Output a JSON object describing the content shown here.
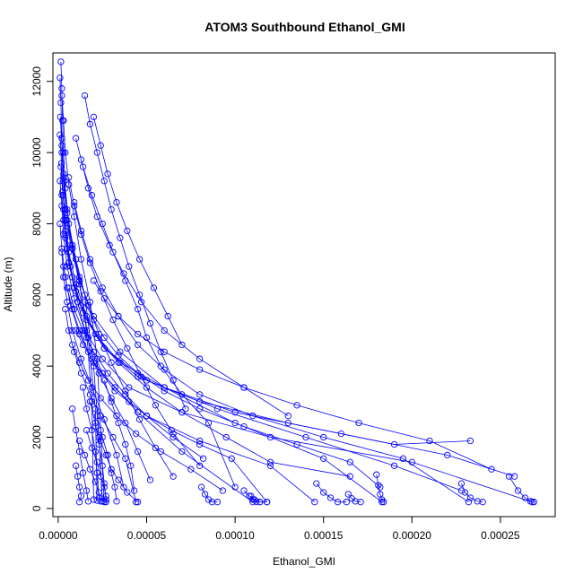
{
  "chart_data": {
    "type": "line",
    "title": "ATOM3 Southbound Ethanol_GMI",
    "xlabel": "Ethanol_GMI",
    "ylabel": "Altitude (m)",
    "xlim": [
      -3e-06,
      0.000281
    ],
    "ylim": [
      -230,
      12800
    ],
    "xticks": [
      0,
      5e-05,
      0.0001,
      0.00015,
      0.0002,
      0.00025
    ],
    "xtick_labels": [
      "0.00000",
      "0.00005",
      "0.00010",
      "0.00015",
      "0.00020",
      "0.00025"
    ],
    "yticks": [
      0,
      2000,
      4000,
      6000,
      8000,
      10000,
      12000
    ],
    "ytick_labels": [
      "0",
      "2000",
      "4000",
      "6000",
      "8000",
      "10000",
      "12000"
    ],
    "grid": false,
    "marker": "open-circle",
    "color": "#0000ff",
    "series": [
      {
        "x": [
          1.5e-06,
          2e-06,
          2.5e-06,
          3e-06,
          4e-06,
          6e-06,
          1e-05,
          1.5e-05,
          2e-05,
          2.3e-05,
          2.5e-05
        ],
        "y": [
          12550,
          11800,
          10900,
          10000,
          9000,
          8000,
          7000,
          6000,
          4000,
          2000,
          200
        ]
      },
      {
        "x": [
          1e-06,
          1.5e-06,
          2e-06,
          3e-06,
          5e-06,
          8e-06,
          1.2e-05,
          1.6e-05,
          1.9e-05,
          2e-05
        ],
        "y": [
          12100,
          11400,
          10400,
          9400,
          8400,
          7400,
          6400,
          5000,
          3000,
          250
        ]
      },
      {
        "x": [
          2e-06,
          3e-06,
          4e-06,
          6e-06,
          9e-06,
          1.3e-05,
          1.8e-05,
          2.2e-05,
          2.4e-05,
          2.6e-05
        ],
        "y": [
          11600,
          10900,
          10000,
          9100,
          8200,
          7000,
          5800,
          4200,
          2200,
          180
        ]
      },
      {
        "x": [
          1.2e-06,
          2e-06,
          3e-06,
          5e-06,
          8e-06,
          1.2e-05,
          1.7e-05,
          2.1e-05,
          2.2e-05
        ],
        "y": [
          11000,
          10200,
          9300,
          8300,
          7300,
          6300,
          4800,
          2800,
          220
        ]
      },
      {
        "x": [
          1e-06,
          1.8e-06,
          2.8e-06,
          4e-06,
          7e-06,
          1.1e-05,
          1.6e-05,
          2.5e-05,
          4.5e-05,
          7e-05,
          0.00011
        ],
        "y": [
          10500,
          9700,
          8800,
          7800,
          6800,
          5800,
          4800,
          3800,
          2700,
          1600,
          180
        ]
      },
      {
        "x": [
          2e-06,
          3e-06,
          4e-06,
          7e-06,
          1.2e-05,
          2e-05,
          3.5e-05,
          6e-05,
          0.0001,
          0.00015,
          0.000183
        ],
        "y": [
          10000,
          9200,
          8400,
          7400,
          6400,
          5400,
          4400,
          3400,
          2400,
          1400,
          180
        ]
      },
      {
        "x": [
          1.5e-06,
          2.5e-06,
          4e-06,
          6e-06,
          1e-05,
          1.6e-05,
          2.6e-05,
          5e-05,
          9e-05,
          0.00014,
          0.00019,
          0.000228
        ],
        "y": [
          9600,
          8900,
          8100,
          7200,
          6300,
          5400,
          4500,
          3600,
          2800,
          2000,
          1200,
          500
        ]
      },
      {
        "x": [
          1e-06,
          2e-06,
          3e-06,
          5e-06,
          9e-06,
          1.5e-05,
          2.5e-05,
          4e-05,
          7e-05,
          0.00012,
          0.0002,
          0.000268
        ],
        "y": [
          9200,
          8500,
          7700,
          6800,
          5900,
          5000,
          4200,
          3400,
          2700,
          2000,
          1300,
          180
        ]
      },
      {
        "x": [
          2e-06,
          3e-06,
          5e-06,
          8e-06,
          1.3e-05,
          2.1e-05,
          3.5e-05,
          6e-05,
          0.0001,
          0.00016,
          0.00022,
          0.000258
        ],
        "y": [
          8800,
          8100,
          7300,
          6500,
          5700,
          4900,
          4100,
          3400,
          2700,
          2100,
          1500,
          900
        ]
      },
      {
        "x": [
          3e-06,
          4e-06,
          6e-06,
          1e-05,
          1.6e-05,
          2.6e-05,
          4.5e-05,
          8e-05,
          0.00013,
          0.00019,
          0.000233
        ],
        "y": [
          8400,
          7700,
          6900,
          6100,
          5300,
          4500,
          3700,
          3000,
          2400,
          1800,
          1900
        ]
      },
      {
        "x": [
          1e-06,
          2e-06,
          4e-06,
          7e-06,
          1.2e-05,
          2e-05,
          3.2e-05,
          5e-05,
          8e-05,
          0.00012,
          0.000145
        ],
        "y": [
          8000,
          7300,
          6500,
          5700,
          4900,
          4100,
          3300,
          2600,
          1900,
          1200,
          180
        ]
      },
      {
        "x": [
          4e-06,
          6e-06,
          9e-06,
          1.4e-05,
          2.2e-05,
          3.4e-05,
          5e-05,
          7e-05,
          9.5e-05,
          0.00012,
          0.000165
        ],
        "y": [
          7600,
          6900,
          6200,
          5500,
          4800,
          4100,
          3400,
          2700,
          2000,
          1300,
          900
        ]
      },
      {
        "x": [
          2e-06,
          3e-06,
          5e-06,
          8e-06,
          1.3e-05,
          1.9e-05,
          2.6e-05,
          3.3e-05,
          3.7e-05
        ],
        "y": [
          7200,
          6500,
          5800,
          5000,
          4200,
          3400,
          2500,
          1500,
          600
        ]
      },
      {
        "x": [
          1.5e-05,
          1.8e-05,
          2.2e-05,
          2.6e-05,
          3e-05,
          3.5e-05,
          4e-05,
          4.6e-05,
          5.2e-05,
          5.8e-05,
          6.5e-05,
          7.2e-05
        ],
        "y": [
          11600,
          10800,
          10000,
          9200,
          8400,
          7600,
          6800,
          6000,
          5200,
          4400,
          3600,
          2800
        ]
      },
      {
        "x": [
          2e-05,
          2.4e-05,
          2.8e-05,
          3.3e-05,
          3.9e-05,
          4.6e-05,
          5.4e-05,
          6.2e-05,
          7e-05
        ],
        "y": [
          11000,
          10200,
          9400,
          8600,
          7800,
          7000,
          6200,
          5400,
          4600
        ]
      },
      {
        "x": [
          1e-05,
          1.4e-05,
          1.9e-05,
          2.5e-05,
          3.1e-05,
          3.8e-05,
          4.5e-05,
          5e-05,
          5.8e-05,
          7e-05,
          8.5e-05,
          0.0001
        ],
        "y": [
          10400,
          9600,
          8800,
          8000,
          7200,
          6400,
          5600,
          4800,
          4000,
          3200,
          2400,
          600
        ]
      },
      {
        "x": [
          1.3e-05,
          1.7e-05,
          2.2e-05,
          2.9e-05,
          3.7e-05,
          4.7e-05,
          6e-05,
          8e-05,
          0.000105,
          0.00013
        ],
        "y": [
          9800,
          9000,
          8200,
          7400,
          6600,
          5800,
          5000,
          4200,
          3400,
          2600
        ]
      },
      {
        "x": [
          6e-06,
          9e-06,
          1.3e-05,
          1.8e-05,
          2.4e-05,
          3.1e-05,
          3.9e-05,
          4.7e-05,
          5.5e-05,
          6.5e-05,
          8e-05
        ],
        "y": [
          9300,
          8500,
          7700,
          6900,
          6100,
          5300,
          4500,
          3700,
          2900,
          2100,
          1200
        ]
      },
      {
        "x": [
          9e-06,
          1.3e-05,
          1.8e-05,
          2.5e-05,
          3.4e-05,
          4.5e-05,
          6e-05,
          8e-05,
          0.00011,
          0.00015,
          0.000195,
          0.000232
        ],
        "y": [
          8600,
          7800,
          7000,
          6200,
          5400,
          4600,
          3900,
          3200,
          2600,
          2000,
          1400,
          180
        ]
      },
      {
        "x": [
          5e-06,
          8e-06,
          1.2e-05,
          1.7e-05,
          2.3e-05,
          3e-05,
          3.8e-05,
          4.6e-05,
          5.5e-05,
          6.5e-05
        ],
        "y": [
          8100,
          7300,
          6500,
          5700,
          4900,
          4100,
          3300,
          2500,
          1700,
          900
        ]
      },
      {
        "x": [
          3e-06,
          5e-06,
          8e-06,
          1.2e-05,
          1.7e-05,
          2.3e-05,
          3e-05,
          3.8e-05,
          4.5e-05,
          5.2e-05
        ],
        "y": [
          6800,
          6200,
          5600,
          5000,
          4400,
          3800,
          3100,
          2400,
          1600,
          800
        ]
      },
      {
        "x": [
          6e-06,
          9e-06,
          1.4e-05,
          2e-05,
          2.8e-05,
          3.8e-05,
          5e-05,
          6.5e-05,
          8.2e-05
        ],
        "y": [
          6200,
          5600,
          5000,
          4400,
          3800,
          3200,
          2600,
          2000,
          1400
        ]
      },
      {
        "x": [
          4e-06,
          6e-06,
          9e-06,
          1.3e-05,
          1.8e-05,
          2.4e-05,
          3.1e-05,
          3.8e-05,
          4.4e-05
        ],
        "y": [
          5600,
          5000,
          4400,
          3800,
          3200,
          2600,
          2000,
          1400,
          180
        ]
      },
      {
        "x": [
          1e-05,
          1.4e-05,
          1.9e-05,
          2.5e-05,
          3.2e-05,
          4e-05,
          5e-05,
          6.4e-05,
          8e-05,
          9.8e-05,
          0.000118
        ],
        "y": [
          5000,
          4600,
          4200,
          3800,
          3400,
          3000,
          2600,
          2200,
          1800,
          1400,
          180
        ]
      },
      {
        "x": [
          1.5e-05,
          2e-05,
          2.6e-05,
          3.4e-05,
          4.5e-05,
          6e-05,
          8e-05,
          0.000105,
          0.000135,
          0.000165,
          0.000182
        ],
        "y": [
          5800,
          5300,
          4800,
          4300,
          3800,
          3300,
          2800,
          2300,
          1800,
          1300,
          600
        ]
      },
      {
        "x": [
          2e-05,
          2.6e-05,
          3.4e-05,
          4.5e-05,
          6e-05,
          8e-05,
          0.000105,
          0.000135,
          0.00017,
          0.00021,
          0.000245
        ],
        "y": [
          6400,
          5900,
          5400,
          4900,
          4400,
          3900,
          3400,
          2900,
          2400,
          1900,
          1100
        ]
      },
      {
        "x": [
          8e-06,
          1.2e-05,
          1.7e-05,
          2.4e-05,
          3.3e-05,
          4.4e-05,
          5.8e-05,
          7.5e-05,
          9.3e-05
        ],
        "y": [
          4600,
          4100,
          3600,
          3100,
          2600,
          2100,
          1600,
          1100,
          500
        ]
      },
      {
        "x": [
          1.6e-05,
          1.9e-05,
          2.2e-05,
          2.4e-05,
          2.6e-05,
          2.7e-05,
          2.7e-05
        ],
        "y": [
          2200,
          1700,
          1300,
          900,
          600,
          350,
          180
        ]
      },
      {
        "x": [
          1.2e-05,
          1.5e-05,
          1.8e-05,
          2.1e-05,
          2.3e-05,
          2.4e-05
        ],
        "y": [
          1900,
          1500,
          1100,
          750,
          450,
          200
        ]
      },
      {
        "x": [
          1.8e-05,
          2.1e-05,
          2.3e-05,
          2.5e-05,
          2.6e-05,
          2.7e-05
        ],
        "y": [
          3000,
          2400,
          1800,
          1200,
          700,
          250
        ]
      },
      {
        "x": [
          2.2e-05,
          2.5e-05,
          2.8e-05,
          3e-05,
          3.2e-05,
          3.3e-05
        ],
        "y": [
          2600,
          2000,
          1500,
          1000,
          600,
          200
        ]
      },
      {
        "x": [
          1.4e-05,
          1.6e-05,
          1.9e-05,
          2.1e-05,
          2.2e-05,
          2.3e-05
        ],
        "y": [
          3400,
          2800,
          2200,
          1600,
          1000,
          300
        ]
      },
      {
        "x": [
          1e-05,
          1.1e-05,
          1.2e-05,
          1.3e-05,
          1.2e-05
        ],
        "y": [
          1200,
          900,
          600,
          350,
          180
        ]
      },
      {
        "x": [
          2.6e-05,
          3e-05,
          3.4e-05,
          3.8e-05,
          4.1e-05,
          4.3e-05
        ],
        "y": [
          3600,
          3000,
          2400,
          1800,
          1200,
          500
        ]
      },
      {
        "x": [
          8e-06,
          1e-05,
          1.2e-05,
          1.4e-05,
          1.6e-05,
          1.7e-05
        ],
        "y": [
          2800,
          2200,
          1600,
          1000,
          500,
          200
        ]
      },
      {
        "x": [
          2.1e-05,
          2.4e-05,
          2.7e-05,
          3e-05,
          3.4e-05,
          3.9e-05,
          4.5e-05
        ],
        "y": [
          2300,
          1900,
          1500,
          1100,
          800,
          450,
          180
        ]
      },
      {
        "x": [
          8.1e-05,
          8.3e-05,
          8.5e-05,
          8.7e-05,
          9e-05
        ],
        "y": [
          600,
          400,
          250,
          180,
          180
        ]
      },
      {
        "x": [
          0.000105,
          0.000108,
          0.000111,
          0.000114,
          0.000118
        ],
        "y": [
          500,
          350,
          250,
          180,
          180
        ]
      },
      {
        "x": [
          0.000146,
          0.00015,
          0.000154,
          0.000158,
          0.000163
        ],
        "y": [
          700,
          450,
          300,
          180,
          180
        ]
      },
      {
        "x": [
          0.00018,
          0.000181,
          0.000182,
          0.000183,
          0.000184
        ],
        "y": [
          950,
          650,
          400,
          250,
          180
        ]
      },
      {
        "x": [
          0.000228,
          0.00023,
          0.000233,
          0.000237,
          0.00024
        ],
        "y": [
          700,
          450,
          300,
          200,
          180
        ]
      },
      {
        "x": [
          0.000255,
          0.00026,
          0.000264,
          0.000267,
          0.000269
        ],
        "y": [
          900,
          500,
          300,
          200,
          180
        ]
      },
      {
        "x": [
          0.000164,
          0.000166,
          0.000168,
          0.000171
        ],
        "y": [
          400,
          280,
          200,
          180
        ]
      },
      {
        "x": [
          0.000109,
          0.00011,
          0.000112,
          0.000114
        ],
        "y": [
          350,
          250,
          190,
          180
        ]
      }
    ]
  }
}
